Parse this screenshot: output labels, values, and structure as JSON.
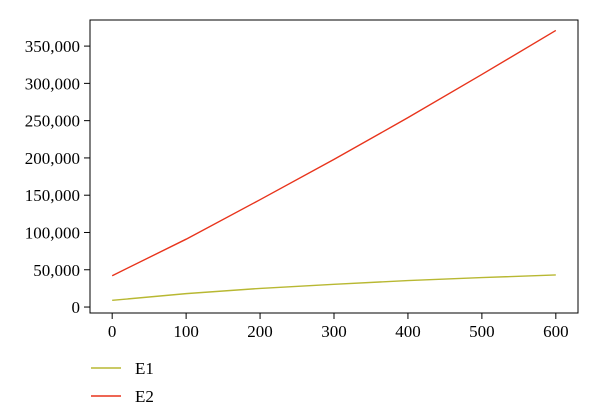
{
  "chart_data": {
    "type": "line",
    "title": "",
    "xlabel": "",
    "ylabel": "",
    "xlim": [
      -30,
      630
    ],
    "ylim": [
      -8000,
      385000
    ],
    "x_ticks": [
      0,
      100,
      200,
      300,
      400,
      500,
      600
    ],
    "x_tick_labels": [
      "0",
      "100",
      "200",
      "300",
      "400",
      "500",
      "600"
    ],
    "y_ticks": [
      0,
      50000,
      100000,
      150000,
      200000,
      250000,
      300000,
      350000
    ],
    "y_tick_labels": [
      "0",
      "50,000",
      "100,000",
      "150,000",
      "200,000",
      "250,000",
      "300,000",
      "350,000"
    ],
    "grid": false,
    "legend_position": "bottom-left",
    "x": [
      0,
      100,
      200,
      300,
      400,
      500,
      600
    ],
    "series": [
      {
        "name": "E1",
        "color": "#b8b832",
        "values": [
          9000,
          18000,
          25000,
          30500,
          35500,
          39500,
          43000
        ]
      },
      {
        "name": "E2",
        "color": "#e8341c",
        "values": [
          42000,
          91000,
          144000,
          198000,
          254000,
          312000,
          371000
        ]
      }
    ]
  }
}
